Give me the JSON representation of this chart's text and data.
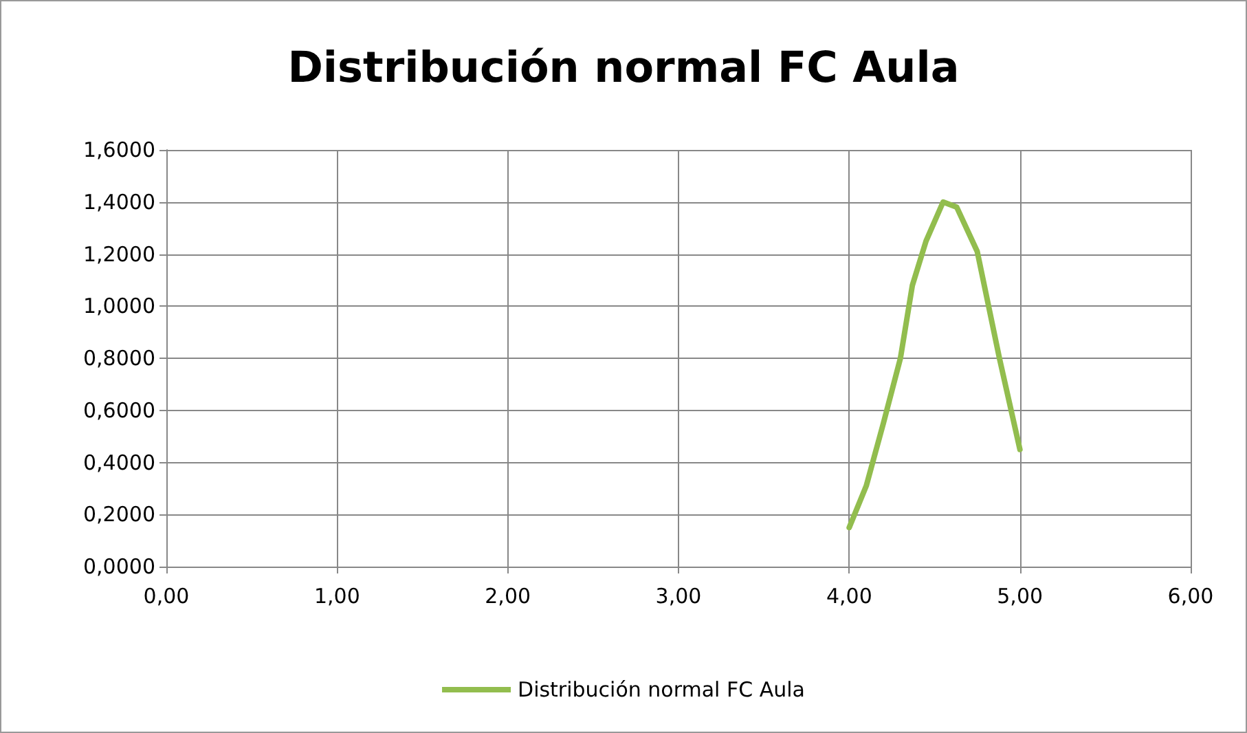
{
  "chart_data": {
    "type": "line",
    "title": "Distribución normal FC Aula",
    "x": [
      4.0,
      4.1,
      4.2,
      4.3,
      4.37,
      4.45,
      4.55,
      4.63,
      4.75,
      4.88,
      5.0
    ],
    "series": [
      {
        "name": "Distribución normal FC Aula",
        "color": "#92bd4e",
        "values": [
          0.15,
          0.31,
          0.55,
          0.8,
          1.08,
          1.25,
          1.4,
          1.38,
          1.21,
          0.8,
          0.45
        ]
      }
    ],
    "xlim": [
      0,
      6
    ],
    "xticks": [
      {
        "value": 0,
        "label": "0,00"
      },
      {
        "value": 1,
        "label": "1,00"
      },
      {
        "value": 2,
        "label": "2,00"
      },
      {
        "value": 3,
        "label": "3,00"
      },
      {
        "value": 4,
        "label": "4,00"
      },
      {
        "value": 5,
        "label": "5,00"
      },
      {
        "value": 6,
        "label": "6,00"
      }
    ],
    "ylim": [
      0,
      1.6
    ],
    "yticks": [
      {
        "value": 0,
        "label": "0,0000"
      },
      {
        "value": 0.2,
        "label": "0,2000"
      },
      {
        "value": 0.4,
        "label": "0,4000"
      },
      {
        "value": 0.6,
        "label": "0,6000"
      },
      {
        "value": 0.8,
        "label": "0,8000"
      },
      {
        "value": 1.0,
        "label": "1,0000"
      },
      {
        "value": 1.2,
        "label": "1,2000"
      },
      {
        "value": 1.4,
        "label": "1,4000"
      },
      {
        "value": 1.6,
        "label": "1,6000"
      }
    ],
    "grid": true,
    "legend": "bottom",
    "marker": "none",
    "line_style": "solid"
  }
}
